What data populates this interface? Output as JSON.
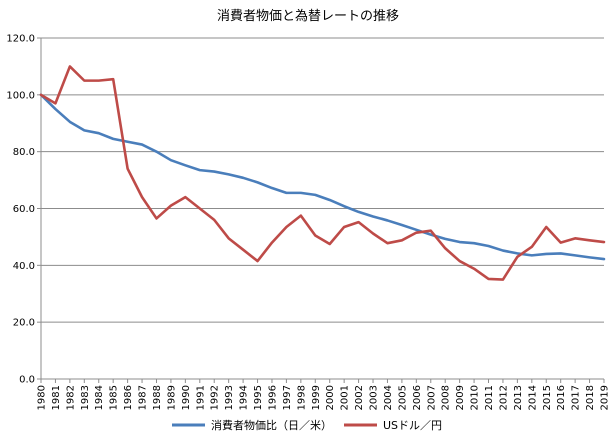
{
  "chart_data": {
    "type": "line",
    "title": "消費者物価と為替レートの推移",
    "xlabel": "",
    "ylabel": "",
    "ylim": [
      0,
      120
    ],
    "y_ticks": [
      "0.0",
      "20.0",
      "40.0",
      "60.0",
      "80.0",
      "100.0",
      "120.0"
    ],
    "grid": "horizontal",
    "legend_position": "bottom",
    "categories": [
      "1980",
      "1981",
      "1982",
      "1983",
      "1984",
      "1985",
      "1986",
      "1987",
      "1988",
      "1989",
      "1990",
      "1991",
      "1992",
      "1993",
      "1994",
      "1995",
      "1996",
      "1997",
      "1998",
      "1999",
      "2000",
      "2001",
      "2002",
      "2003",
      "2004",
      "2005",
      "2006",
      "2007",
      "2008",
      "2009",
      "2010",
      "2011",
      "2012",
      "2013",
      "2014",
      "2015",
      "2016",
      "2017",
      "2018",
      "2019"
    ],
    "series": [
      {
        "name": "消費者物価比（日／米）",
        "color": "#4a7ebb",
        "values": [
          100.0,
          95.0,
          90.5,
          87.5,
          86.5,
          84.5,
          83.5,
          82.5,
          80.0,
          77.0,
          75.2,
          73.5,
          73.0,
          72.0,
          70.8,
          69.2,
          67.2,
          65.5,
          65.5,
          64.8,
          63.0,
          60.8,
          58.8,
          57.2,
          55.8,
          54.2,
          52.5,
          50.8,
          49.3,
          48.2,
          47.8,
          46.8,
          45.2,
          44.2,
          43.5,
          44.0,
          44.2,
          43.5,
          42.8,
          42.2
        ]
      },
      {
        "name": "USドル／円",
        "color": "#be4b48",
        "values": [
          100.0,
          97.0,
          110.0,
          105.0,
          105.0,
          105.5,
          74.0,
          64.0,
          56.5,
          61.0,
          64.0,
          60.0,
          56.0,
          49.5,
          45.5,
          41.5,
          48.0,
          53.5,
          57.5,
          50.5,
          47.5,
          53.5,
          55.2,
          51.2,
          47.8,
          48.8,
          51.5,
          52.2,
          46.0,
          41.5,
          38.8,
          35.2,
          35.0,
          43.0,
          46.5,
          53.5,
          48.0,
          49.5,
          48.8,
          48.2
        ]
      }
    ]
  }
}
